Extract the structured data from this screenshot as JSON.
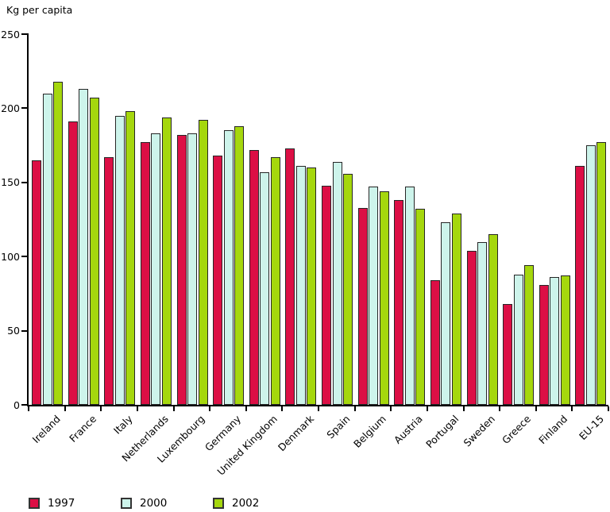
{
  "chart_data": {
    "type": "bar",
    "title": "Kg per capita",
    "ylabel": "Kg per capita",
    "xlabel": "",
    "ylim": [
      0,
      250
    ],
    "yticks": [
      0,
      50,
      100,
      150,
      200,
      250
    ],
    "grid": false,
    "legend_position": "bottom-left",
    "categories": [
      "Ireland",
      "France",
      "Italy",
      "Netherlands",
      "Luxembourg",
      "Germany",
      "United Kingdom",
      "Denmark",
      "Spain",
      "Belgium",
      "Austria",
      "Portugal",
      "Sweden",
      "Greece",
      "Finland",
      "EU-15"
    ],
    "series": [
      {
        "name": "1997",
        "color": "#DC0F45",
        "values": [
          165,
          191,
          167,
          177,
          182,
          168,
          172,
          173,
          148,
          133,
          138,
          84,
          104,
          68,
          81,
          161
        ]
      },
      {
        "name": "2000",
        "color": "#CDF4EB",
        "values": [
          210,
          213,
          195,
          183,
          183,
          185,
          157,
          161,
          164,
          147,
          147,
          123,
          110,
          88,
          86,
          175
        ]
      },
      {
        "name": "2002",
        "color": "#A5D70D",
        "values": [
          218,
          207,
          198,
          194,
          192,
          188,
          167,
          160,
          156,
          144,
          132,
          129,
          115,
          94,
          87,
          177
        ]
      }
    ]
  },
  "colors": {
    "background": "#FFFFFF",
    "axis": "#000000",
    "bar_border": "#262626",
    "text": "#000000"
  }
}
